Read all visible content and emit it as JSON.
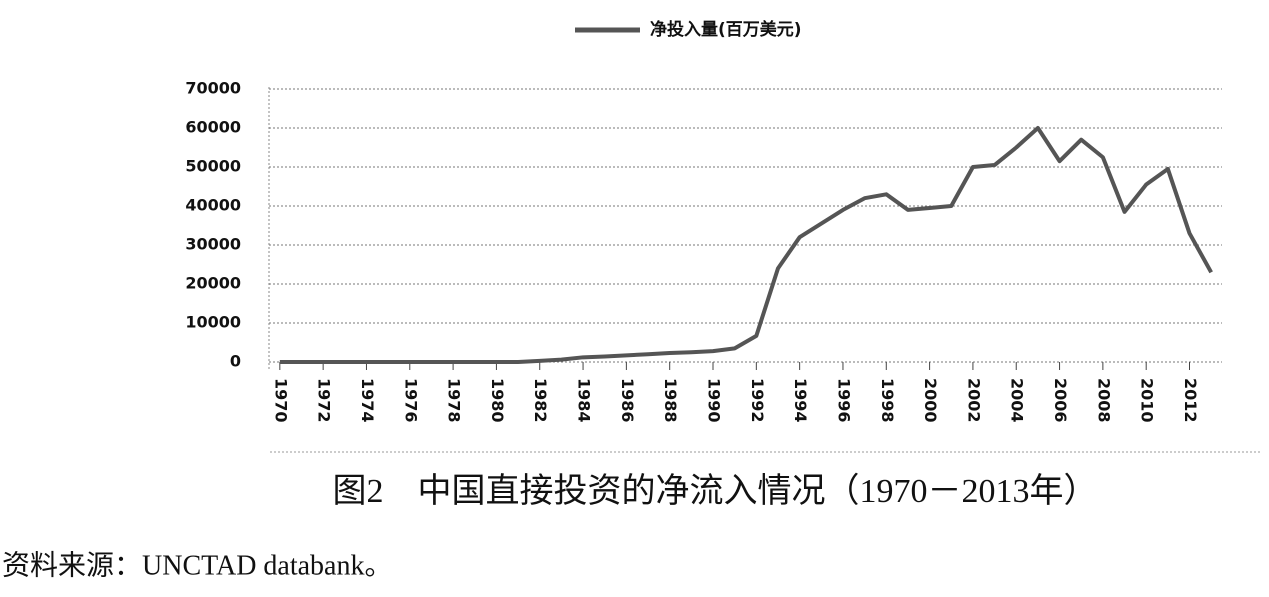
{
  "chart_data": {
    "type": "line",
    "legend_label": "净投入量(百万美元)",
    "caption": "图2　中国直接投资的净流入情况（1970－2013年）",
    "source": "资料来源：UNCTAD databank。",
    "x": [
      1970,
      1971,
      1972,
      1973,
      1974,
      1975,
      1976,
      1977,
      1978,
      1979,
      1980,
      1981,
      1982,
      1983,
      1984,
      1985,
      1986,
      1987,
      1988,
      1989,
      1990,
      1991,
      1992,
      1993,
      1994,
      1995,
      1996,
      1997,
      1998,
      1999,
      2000,
      2001,
      2002,
      2003,
      2004,
      2005,
      2006,
      2007,
      2008,
      2009,
      2010,
      2011,
      2012,
      2013
    ],
    "series": [
      {
        "name": "净投入量(百万美元)",
        "color": "#555555",
        "values": [
          0,
          0,
          0,
          0,
          0,
          0,
          0,
          0,
          0,
          0,
          0,
          0,
          300,
          600,
          1200,
          1400,
          1700,
          2000,
          2300,
          2500,
          2800,
          3500,
          6700,
          24000,
          32000,
          35500,
          39000,
          42000,
          43000,
          39000,
          39500,
          40000,
          50000,
          50500,
          55000,
          60000,
          51500,
          57000,
          52500,
          38500,
          45500,
          49500,
          33000,
          23000
        ]
      }
    ],
    "xlim": [
      1969.5,
      2013.5
    ],
    "xticks": [
      1970,
      1972,
      1974,
      1976,
      1978,
      1980,
      1982,
      1984,
      1986,
      1988,
      1990,
      1992,
      1994,
      1996,
      1998,
      2000,
      2002,
      2004,
      2006,
      2008,
      2010,
      2012
    ],
    "ylim": [
      0,
      70000
    ],
    "yticks": [
      0,
      10000,
      20000,
      30000,
      40000,
      50000,
      60000,
      70000
    ],
    "grid": true
  }
}
